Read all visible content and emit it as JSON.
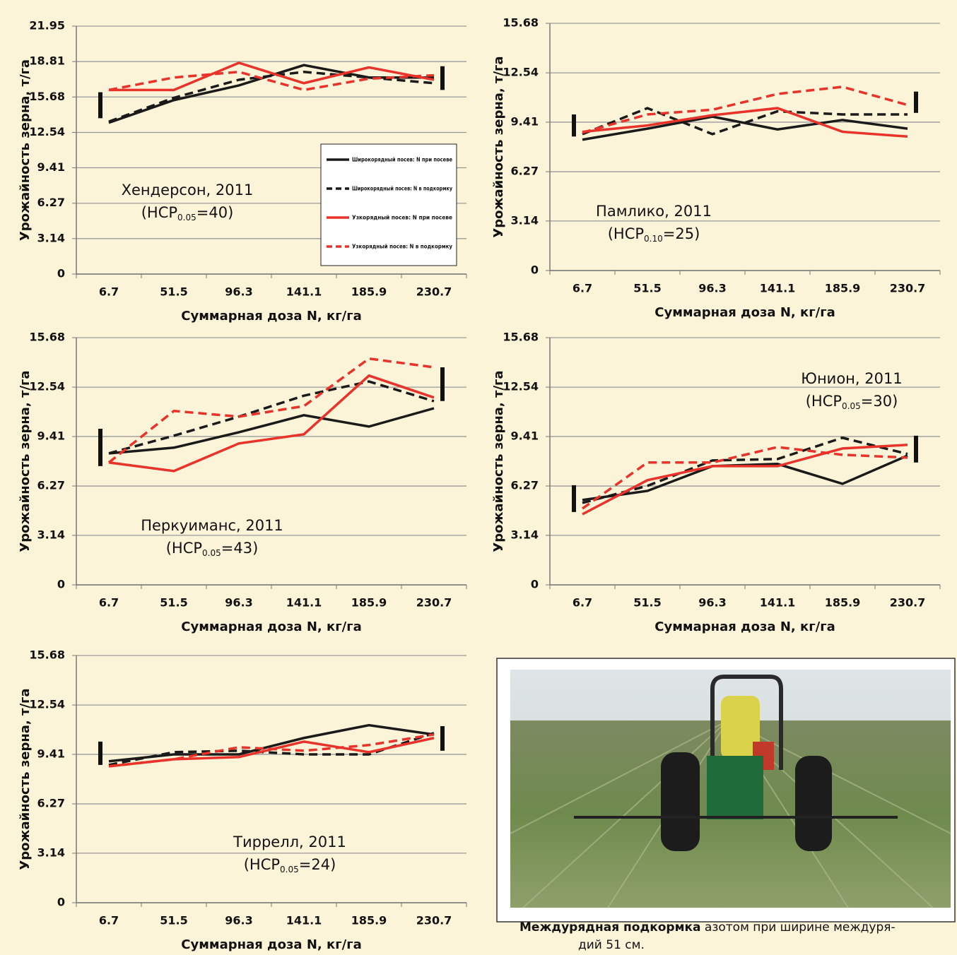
{
  "chart_data": [
    {
      "type": "line",
      "categories": [
        "6.7",
        "51.5",
        "96.3",
        "141.1",
        "185.9",
        "230.7"
      ],
      "y_label": "Урожайность зерна, т/га",
      "x_label": "Суммарная доза N, кг/га",
      "ylim": [
        0,
        21.95
      ],
      "yticks": [
        0,
        3.14,
        6.27,
        9.41,
        12.54,
        15.68,
        18.81,
        21.95
      ],
      "grid": true,
      "annotation": {
        "site": "Хендерсон, 2011",
        "lsd_prefix": "(НСР",
        "lsd_sub": "0.05",
        "lsd_suffix": "=40)"
      },
      "legend_position": "lower right",
      "lsd_bars": [
        [
          13.8,
          16.1
        ],
        [
          16.3,
          18.4
        ]
      ],
      "series": [
        {
          "name": "Широкорядный посев: N при посеве",
          "color": "#1a1a1a",
          "dash": false,
          "values": [
            13.4,
            15.4,
            16.7,
            18.5,
            17.4,
            17.4
          ]
        },
        {
          "name": "Широкорядный посев: N в подкормку",
          "color": "#1a1a1a",
          "dash": true,
          "values": [
            13.5,
            15.6,
            17.2,
            17.9,
            17.4,
            16.9
          ]
        },
        {
          "name": "Узкорядный посев: N при посеве",
          "color": "#e8322a",
          "dash": false,
          "values": [
            16.3,
            16.3,
            18.7,
            16.9,
            18.3,
            17.2
          ]
        },
        {
          "name": "Узкорядный посев: N в подкормку",
          "color": "#e8322a",
          "dash": true,
          "values": [
            16.3,
            17.4,
            17.9,
            16.3,
            17.3,
            17.6
          ]
        }
      ]
    },
    {
      "type": "line",
      "categories": [
        "6.7",
        "51.5",
        "96.3",
        "141.1",
        "185.9",
        "230.7"
      ],
      "y_label": "Урожайность зерна, т/га",
      "x_label": "Суммарная доза N, кг/га",
      "ylim": [
        0,
        15.68
      ],
      "yticks": [
        0,
        3.14,
        6.27,
        9.41,
        12.54,
        15.68
      ],
      "grid": true,
      "annotation": {
        "site": "Памлико, 2011",
        "lsd_prefix": "(НСР",
        "lsd_sub": "0.10",
        "lsd_suffix": "=25)"
      },
      "lsd_bars": [
        [
          8.5,
          9.9
        ],
        [
          10.0,
          11.35
        ]
      ],
      "series": [
        {
          "color": "#1a1a1a",
          "dash": false,
          "values": [
            8.3,
            9.0,
            9.76,
            8.95,
            9.55,
            9.0
          ]
        },
        {
          "color": "#1a1a1a",
          "dash": true,
          "values": [
            8.65,
            10.3,
            8.65,
            10.1,
            9.9,
            9.9
          ]
        },
        {
          "color": "#e8322a",
          "dash": false,
          "values": [
            8.8,
            9.2,
            9.85,
            10.3,
            8.8,
            8.5
          ]
        },
        {
          "color": "#e8322a",
          "dash": true,
          "values": [
            8.75,
            9.9,
            10.2,
            11.2,
            11.65,
            10.5
          ]
        }
      ]
    },
    {
      "type": "line",
      "categories": [
        "6.7",
        "51.5",
        "96.3",
        "141.1",
        "185.9",
        "230.7"
      ],
      "y_label": "Урожайность зерна, т/га",
      "x_label": "Суммарная доза N, кг/га",
      "ylim": [
        0,
        15.68
      ],
      "yticks": [
        0,
        3.14,
        6.27,
        9.41,
        12.54,
        15.68
      ],
      "grid": true,
      "annotation": {
        "site": "Перкуиманс, 2011",
        "lsd_prefix": "(НСР",
        "lsd_sub": "0.05",
        "lsd_suffix": "=43)"
      },
      "lsd_bars": [
        [
          7.53,
          9.9
        ],
        [
          11.66,
          13.8
        ]
      ],
      "series": [
        {
          "color": "#1a1a1a",
          "dash": false,
          "values": [
            8.34,
            8.7,
            9.68,
            10.76,
            10.04,
            11.2
          ]
        },
        {
          "color": "#1a1a1a",
          "dash": true,
          "values": [
            8.34,
            9.46,
            10.67,
            12.0,
            12.9,
            11.65
          ]
        },
        {
          "color": "#e8322a",
          "dash": false,
          "values": [
            7.76,
            7.22,
            8.97,
            9.55,
            13.27,
            11.88
          ]
        },
        {
          "color": "#e8322a",
          "dash": true,
          "values": [
            7.76,
            11.03,
            10.67,
            11.34,
            14.35,
            13.8
          ]
        }
      ]
    },
    {
      "type": "line",
      "categories": [
        "6.7",
        "51.5",
        "96.3",
        "141.1",
        "185.9",
        "230.7"
      ],
      "y_label": "Урожайность зерна, т/га",
      "x_label": "Суммарная доза N, кг/га",
      "ylim": [
        0,
        15.68
      ],
      "yticks": [
        0,
        3.14,
        6.27,
        9.41,
        12.54,
        15.68
      ],
      "grid": true,
      "annotation": {
        "site": "Юнион, 2011",
        "lsd_prefix": "(НСР",
        "lsd_sub": "0.05",
        "lsd_suffix": "=30)"
      },
      "lsd_bars": [
        [
          4.62,
          6.32
        ],
        [
          7.76,
          9.46
        ]
      ],
      "series": [
        {
          "color": "#1a1a1a",
          "dash": false,
          "values": [
            5.38,
            5.96,
            7.53,
            7.67,
            6.41,
            8.2
          ]
        },
        {
          "color": "#1a1a1a",
          "dash": true,
          "values": [
            5.2,
            6.28,
            7.89,
            7.98,
            9.33,
            8.3
          ]
        },
        {
          "color": "#e8322a",
          "dash": false,
          "values": [
            4.48,
            6.64,
            7.53,
            7.53,
            8.65,
            8.88
          ]
        },
        {
          "color": "#e8322a",
          "dash": true,
          "values": [
            4.84,
            7.76,
            7.76,
            8.74,
            8.25,
            8.07
          ]
        }
      ]
    },
    {
      "type": "line",
      "categories": [
        "6.7",
        "51.5",
        "96.3",
        "141.1",
        "185.9",
        "230.7"
      ],
      "y_label": "Урожайность зерна, т/га",
      "x_label": "Суммарная доза N, кг/га",
      "ylim": [
        0,
        15.68
      ],
      "yticks": [
        0,
        3.14,
        6.27,
        9.41,
        12.54,
        15.68
      ],
      "grid": true,
      "annotation": {
        "site": "Тиррелл, 2011",
        "lsd_prefix": "(НСР",
        "lsd_sub": "0.05",
        "lsd_suffix": "=24)"
      },
      "lsd_bars": [
        [
          8.74,
          10.22
        ],
        [
          9.64,
          11.2
        ]
      ],
      "series": [
        {
          "color": "#1a1a1a",
          "dash": false,
          "values": [
            8.97,
            9.41,
            9.41,
            10.45,
            11.26,
            10.67
          ]
        },
        {
          "color": "#1a1a1a",
          "dash": true,
          "values": [
            8.74,
            9.55,
            9.64,
            9.41,
            9.41,
            10.76
          ]
        },
        {
          "color": "#e8322a",
          "dash": false,
          "values": [
            8.65,
            9.1,
            9.24,
            10.22,
            9.55,
            10.45
          ]
        },
        {
          "color": "#e8322a",
          "dash": true,
          "values": [
            8.65,
            9.1,
            9.86,
            9.64,
            10.0,
            10.67
          ]
        }
      ]
    }
  ],
  "caption": {
    "bold": "Междурядная подкормка",
    "rest": [
      "азотом при ширине междуря-",
      "дий 51 см."
    ]
  }
}
